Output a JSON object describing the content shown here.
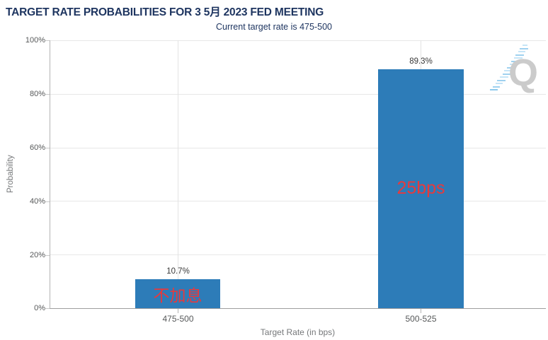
{
  "chart_data": {
    "type": "bar",
    "title": "TARGET RATE PROBABILITIES FOR 3 5月 2023 FED MEETING",
    "subtitle": "Current target rate is 475-500",
    "xlabel": "Target Rate (in bps)",
    "ylabel": "Probability",
    "categories": [
      "475-500",
      "500-525"
    ],
    "values": [
      10.7,
      89.3
    ],
    "data_labels": [
      "10.7%",
      "89.3%"
    ],
    "yticks": [
      "100%",
      "80%",
      "60%",
      "40%",
      "20%",
      "0%"
    ],
    "ylim": [
      0,
      100
    ],
    "grid": true,
    "legend": "none",
    "bar_color": "#2D7CB8",
    "annotation_color": "#E8393C",
    "title_color": "#1E3560",
    "annotations": [
      {
        "text": "不加息",
        "target_category": "475-500"
      },
      {
        "text": "25bps",
        "target_category": "500-525"
      }
    ]
  },
  "watermark": {
    "letter": "Q"
  }
}
